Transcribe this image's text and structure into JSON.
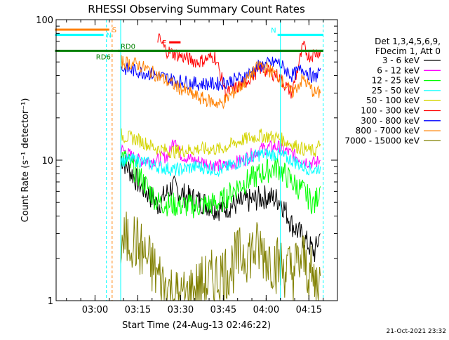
{
  "chart_data": {
    "type": "line",
    "title": "RHESSI Observing Summary Count Rates",
    "xlabel": "Start Time (24-Aug-13 02:46:22)",
    "ylabel": "Count Rate (s⁻¹ detector⁻¹)",
    "y_scale": "log",
    "ylim": [
      1,
      100
    ],
    "xlim": [
      "02:46:22",
      "04:25:00"
    ],
    "x_ticks": [
      "03:00",
      "03:15",
      "03:30",
      "03:45",
      "04:00",
      "04:15"
    ],
    "y_ticks": [
      "1",
      "10",
      "100"
    ],
    "grid": false,
    "legend_position": "right",
    "legend_header": [
      "Det 1,3,4,5,6,9,",
      "FDecim 1, Att 0"
    ],
    "footer_date": "21-Oct-2021 23:32",
    "colors": {
      "3 - 6 keV": "#000000",
      "6 - 12 keV": "#ff00ff",
      "12 - 25 keV": "#00ff00",
      "25 - 50 keV": "#00ffff",
      "50 - 100 keV": "#d4d400",
      "100 - 300 keV": "#ff0000",
      "300 - 800 keV": "#0000ff",
      "800 - 7000 keV": "#ff8000",
      "7000 - 15000 keV": "#808000",
      "saa_flag": "#ff8000",
      "night_flag": "#00ffff",
      "decimation_flag": "#008000",
      "flare_flag": "#ff0000"
    },
    "series": [
      {
        "name": "3 - 6 keV",
        "x": [
          "03:09",
          "03:15",
          "03:22",
          "03:27",
          "03:32",
          "03:38",
          "03:43",
          "03:52",
          "04:00",
          "04:05",
          "04:09",
          "04:13",
          "04:17",
          "04:19"
        ],
        "values": [
          10.5,
          7,
          4.8,
          6.5,
          5.5,
          5,
          4.5,
          5,
          5.5,
          5.2,
          3.5,
          2.8,
          2.2,
          3
        ]
      },
      {
        "name": "6 - 12 keV",
        "x": [
          "03:09",
          "03:15",
          "03:22",
          "03:26",
          "03:28",
          "03:30",
          "03:34",
          "03:40",
          "03:45",
          "03:52",
          "03:58",
          "04:04",
          "04:09",
          "04:13",
          "04:17",
          "04:19"
        ],
        "values": [
          12,
          10,
          10,
          11,
          15,
          11,
          10,
          9.5,
          9,
          10,
          12,
          12.5,
          11,
          10,
          9.5,
          10
        ]
      },
      {
        "name": "12 - 25 keV",
        "x": [
          "03:09",
          "03:15",
          "03:22",
          "03:28",
          "03:35",
          "03:44",
          "03:50",
          "03:58",
          "04:04",
          "04:09",
          "04:13",
          "04:17",
          "04:19"
        ],
        "values": [
          11,
          8,
          5,
          4.8,
          4.7,
          5,
          6.5,
          8,
          9,
          7,
          6,
          4.8,
          6.5
        ]
      },
      {
        "name": "25 - 50 keV",
        "x": [
          "03:09",
          "03:15",
          "03:22",
          "03:28",
          "03:36",
          "03:44",
          "03:52",
          "03:58",
          "04:04",
          "04:09",
          "04:13",
          "04:17",
          "04:19"
        ],
        "values": [
          10,
          10,
          9,
          8.5,
          9,
          8.5,
          10,
          11,
          11,
          10,
          9,
          8.5,
          9
        ]
      },
      {
        "name": "50 - 100 keV",
        "x": [
          "03:09",
          "03:15",
          "03:22",
          "03:28",
          "03:36",
          "03:44",
          "03:52",
          "03:58",
          "04:04",
          "04:09",
          "04:13",
          "04:17",
          "04:19"
        ],
        "values": [
          15,
          14,
          12,
          11.5,
          12,
          12,
          14,
          15,
          14.5,
          13,
          12,
          11.5,
          13
        ]
      },
      {
        "name": "100 - 300 keV",
        "x": [
          "03:22",
          "03:25",
          "03:30",
          "03:36",
          "03:42",
          "03:46",
          "03:52",
          "03:58",
          "04:04",
          "04:09",
          "04:13",
          "04:15",
          "04:19"
        ],
        "values": [
          75,
          60,
          55,
          50,
          55,
          30,
          35,
          45,
          40,
          30,
          65,
          55,
          60
        ]
      },
      {
        "name": "300 - 800 keV",
        "x": [
          "03:09",
          "03:15",
          "03:22",
          "03:28",
          "03:36",
          "03:44",
          "03:52",
          "03:58",
          "04:04",
          "04:09",
          "04:13",
          "04:17",
          "04:19"
        ],
        "values": [
          45,
          43,
          40,
          37,
          35,
          35,
          39,
          47,
          50,
          40,
          45,
          38,
          45
        ]
      },
      {
        "name": "800 - 7000 keV",
        "x": [
          "03:09",
          "03:15",
          "03:22",
          "03:28",
          "03:36",
          "03:44",
          "03:52",
          "03:58",
          "04:04",
          "04:09",
          "04:13",
          "04:17",
          "04:19"
        ],
        "values": [
          50,
          48,
          40,
          34,
          28,
          25,
          35,
          48,
          40,
          30,
          38,
          30,
          30
        ]
      },
      {
        "name": "7000 - 15000 keV",
        "x": [
          "03:09",
          "03:13",
          "03:18",
          "03:24",
          "03:30",
          "03:38",
          "03:46",
          "03:52",
          "03:58",
          "04:04",
          "04:09",
          "04:13",
          "04:17",
          "04:19"
        ],
        "values": [
          2.5,
          2.8,
          2.0,
          1.3,
          1.0,
          1.3,
          1.6,
          2.2,
          2.3,
          1.8,
          1.6,
          2.0,
          1.3,
          1.5
        ]
      }
    ],
    "flags": [
      {
        "label": "S",
        "x_start": "02:46",
        "x_end": "03:05",
        "level": 85
      },
      {
        "label": "N",
        "x_start": "02:46",
        "x_end": "03:03",
        "level": 78
      },
      {
        "label": "N",
        "x_start": "04:04",
        "x_end": "04:20",
        "level": 78
      },
      {
        "label": "F",
        "x_start": "03:26",
        "x_end": "03:30",
        "level": 69
      },
      {
        "label": "RD0",
        "x_start": "03:08",
        "x_end": "04:20",
        "level": 60
      },
      {
        "label": "RD6",
        "x_start": "02:46",
        "x_end": "04:20",
        "level": 60
      }
    ]
  }
}
